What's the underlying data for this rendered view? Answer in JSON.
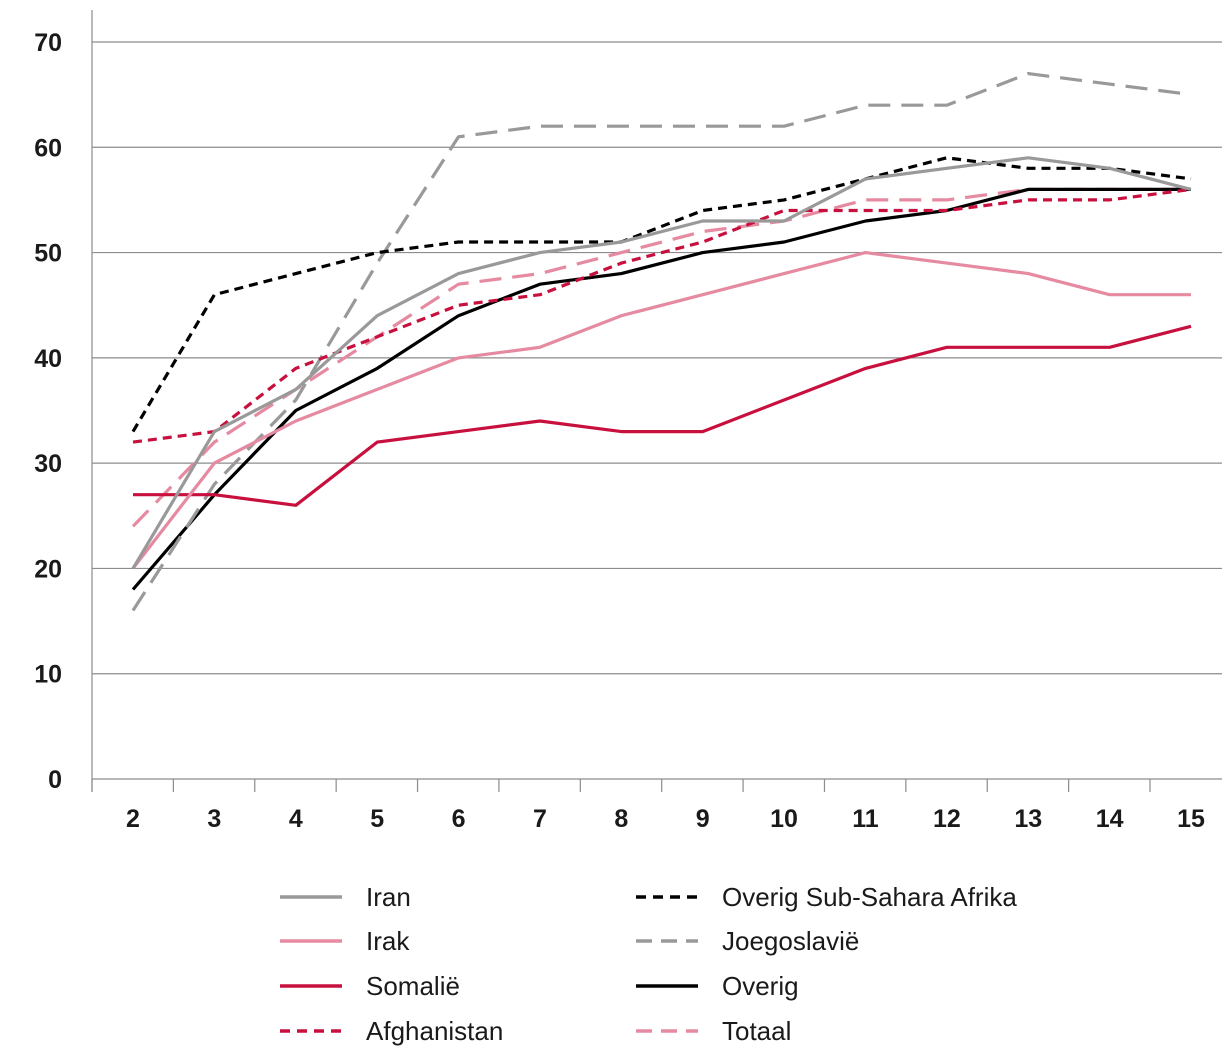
{
  "chart_data": {
    "type": "line",
    "title": "",
    "xlabel": "",
    "ylabel": "",
    "x": [
      2,
      3,
      4,
      5,
      6,
      7,
      8,
      9,
      10,
      11,
      12,
      13,
      14,
      15
    ],
    "x_tick_labels": [
      "2",
      "3",
      "4",
      "5",
      "6",
      "7",
      "8",
      "9",
      "10",
      "11",
      "12",
      "13",
      "14",
      "15"
    ],
    "ylim": [
      0,
      70
    ],
    "y_ticks": [
      0,
      10,
      20,
      30,
      40,
      50,
      60,
      70
    ],
    "y_tick_labels": [
      "0",
      "10",
      "20",
      "30",
      "40",
      "50",
      "60",
      "70"
    ],
    "grid": "horizontal",
    "legend_position": "bottom",
    "series": [
      {
        "name": "Iran",
        "color": "#999999",
        "style": "solid",
        "values": [
          20,
          33,
          37,
          44,
          48,
          50,
          51,
          53,
          53,
          57,
          58,
          59,
          58,
          56
        ]
      },
      {
        "name": "Irak",
        "color": "#e58aa0",
        "style": "solid",
        "values": [
          20,
          30,
          34,
          37,
          40,
          41,
          44,
          46,
          48,
          50,
          49,
          48,
          46,
          46
        ]
      },
      {
        "name": "Somaliё",
        "color": "#c8103e",
        "style": "solid",
        "values": [
          27,
          27,
          26,
          32,
          33,
          34,
          33,
          33,
          36,
          39,
          41,
          41,
          41,
          43
        ]
      },
      {
        "name": "Afghanistan",
        "color": "#c8103e",
        "style": "dashed-short",
        "values": [
          32,
          33,
          39,
          42,
          45,
          46,
          49,
          51,
          54,
          54,
          54,
          55,
          55,
          56
        ]
      },
      {
        "name": "Overig Sub-Sahara Afrika",
        "color": "#000000",
        "style": "dashed-short",
        "values": [
          33,
          46,
          48,
          50,
          51,
          51,
          51,
          54,
          55,
          57,
          59,
          58,
          58,
          57
        ]
      },
      {
        "name": "Joegoslaviё",
        "color": "#999999",
        "style": "dashed-long",
        "values": [
          16,
          28,
          36,
          49,
          61,
          62,
          62,
          62,
          62,
          64,
          64,
          67,
          66,
          65
        ]
      },
      {
        "name": "Overig",
        "color": "#000000",
        "style": "solid",
        "values": [
          18,
          27,
          35,
          39,
          44,
          47,
          48,
          50,
          51,
          53,
          54,
          56,
          56,
          56
        ]
      },
      {
        "name": "Totaal",
        "color": "#e58aa0",
        "style": "dashed-long",
        "values": [
          24,
          32,
          37,
          42,
          47,
          48,
          50,
          52,
          53,
          55,
          55,
          56,
          56,
          56
        ]
      }
    ]
  }
}
